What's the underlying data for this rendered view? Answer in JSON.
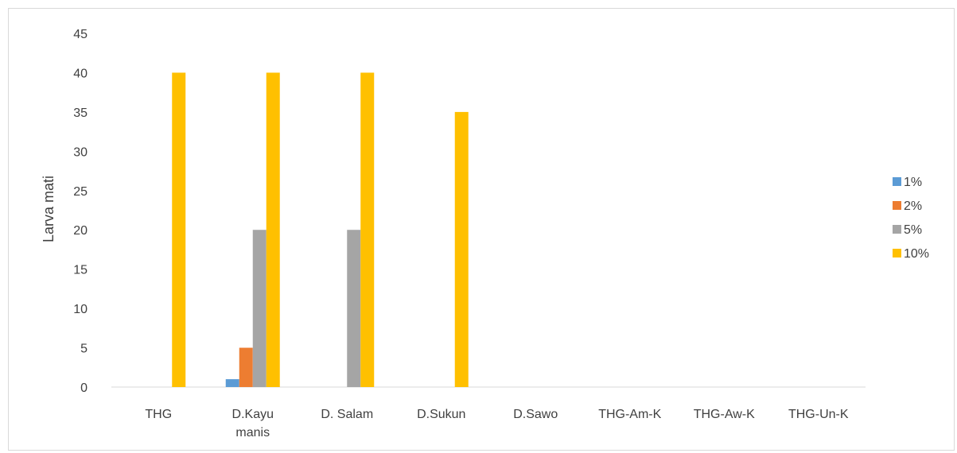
{
  "chart_data": {
    "type": "bar",
    "title": "",
    "xlabel": "",
    "ylabel": "Larva mati",
    "ylim": [
      0,
      45
    ],
    "yticks": [
      0,
      5,
      10,
      15,
      20,
      25,
      30,
      35,
      40,
      45
    ],
    "grid": false,
    "legend_position": "right",
    "categories": [
      [
        "THG"
      ],
      [
        "D.Kayu",
        "manis"
      ],
      [
        "D. Salam"
      ],
      [
        "D.Sukun"
      ],
      [
        "D.Sawo"
      ],
      [
        "THG-Am-K"
      ],
      [
        "THG-Aw-K"
      ],
      [
        "THG-Un-K"
      ]
    ],
    "series": [
      {
        "name": "1%",
        "color": "#5b9bd5",
        "values": [
          0,
          1,
          0,
          0,
          0,
          0,
          0,
          0
        ]
      },
      {
        "name": "2%",
        "color": "#ed7d31",
        "values": [
          0,
          5,
          0,
          0,
          0,
          0,
          0,
          0
        ]
      },
      {
        "name": "5%",
        "color": "#a5a5a5",
        "values": [
          0,
          20,
          20,
          0,
          0,
          0,
          0,
          0
        ]
      },
      {
        "name": "10%",
        "color": "#ffc000",
        "values": [
          40,
          40,
          40,
          35,
          0,
          0,
          0,
          0
        ]
      }
    ]
  }
}
